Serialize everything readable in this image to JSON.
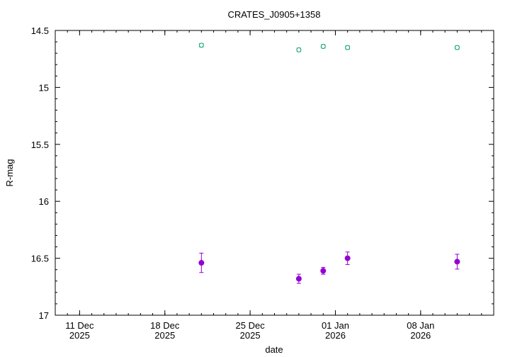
{
  "chart_data": {
    "type": "scatter",
    "title": "CRATES_J0905+1358",
    "xlabel": "date",
    "ylabel": "R-mag",
    "y_inverted": true,
    "ylim": [
      14.5,
      17
    ],
    "xlim": [
      "2025-12-09",
      "2026-01-14"
    ],
    "grid": false,
    "legend": "none",
    "x_ticks": [
      {
        "date": "2025-12-11",
        "line1": "11 Dec",
        "line2": "2025"
      },
      {
        "date": "2025-12-18",
        "line1": "18 Dec",
        "line2": "2025"
      },
      {
        "date": "2025-12-25",
        "line1": "25 Dec",
        "line2": "2025"
      },
      {
        "date": "2026-01-01",
        "line1": "01 Jan",
        "line2": "2026"
      },
      {
        "date": "2026-01-08",
        "line1": "08 Jan",
        "line2": "2026"
      }
    ],
    "y_ticks": [
      {
        "value": 14.5,
        "label": "14.5"
      },
      {
        "value": 15,
        "label": "15"
      },
      {
        "value": 15.5,
        "label": "15.5"
      },
      {
        "value": 16,
        "label": "16"
      },
      {
        "value": 16.5,
        "label": "16.5"
      },
      {
        "value": 17,
        "label": "17"
      }
    ],
    "series": [
      {
        "color": "#009e73",
        "marker": "open-circle",
        "points": [
          {
            "date": "2025-12-21",
            "y": 14.63,
            "err": 0.015
          },
          {
            "date": "2025-12-29",
            "y": 14.67,
            "err": 0.015
          },
          {
            "date": "2025-12-31",
            "y": 14.64,
            "err": 0.015
          },
          {
            "date": "2026-01-02",
            "y": 14.65,
            "err": 0.015
          },
          {
            "date": "2026-01-11",
            "y": 14.65,
            "err": 0.015
          }
        ]
      },
      {
        "color": "#9400d3",
        "marker": "filled-circle",
        "points": [
          {
            "date": "2025-12-21",
            "y": 16.54,
            "err": 0.085
          },
          {
            "date": "2025-12-29",
            "y": 16.68,
            "err": 0.04
          },
          {
            "date": "2025-12-31",
            "y": 16.61,
            "err": 0.03
          },
          {
            "date": "2026-01-02",
            "y": 16.5,
            "err": 0.055
          },
          {
            "date": "2026-01-11",
            "y": 16.53,
            "err": 0.065
          }
        ]
      }
    ]
  }
}
